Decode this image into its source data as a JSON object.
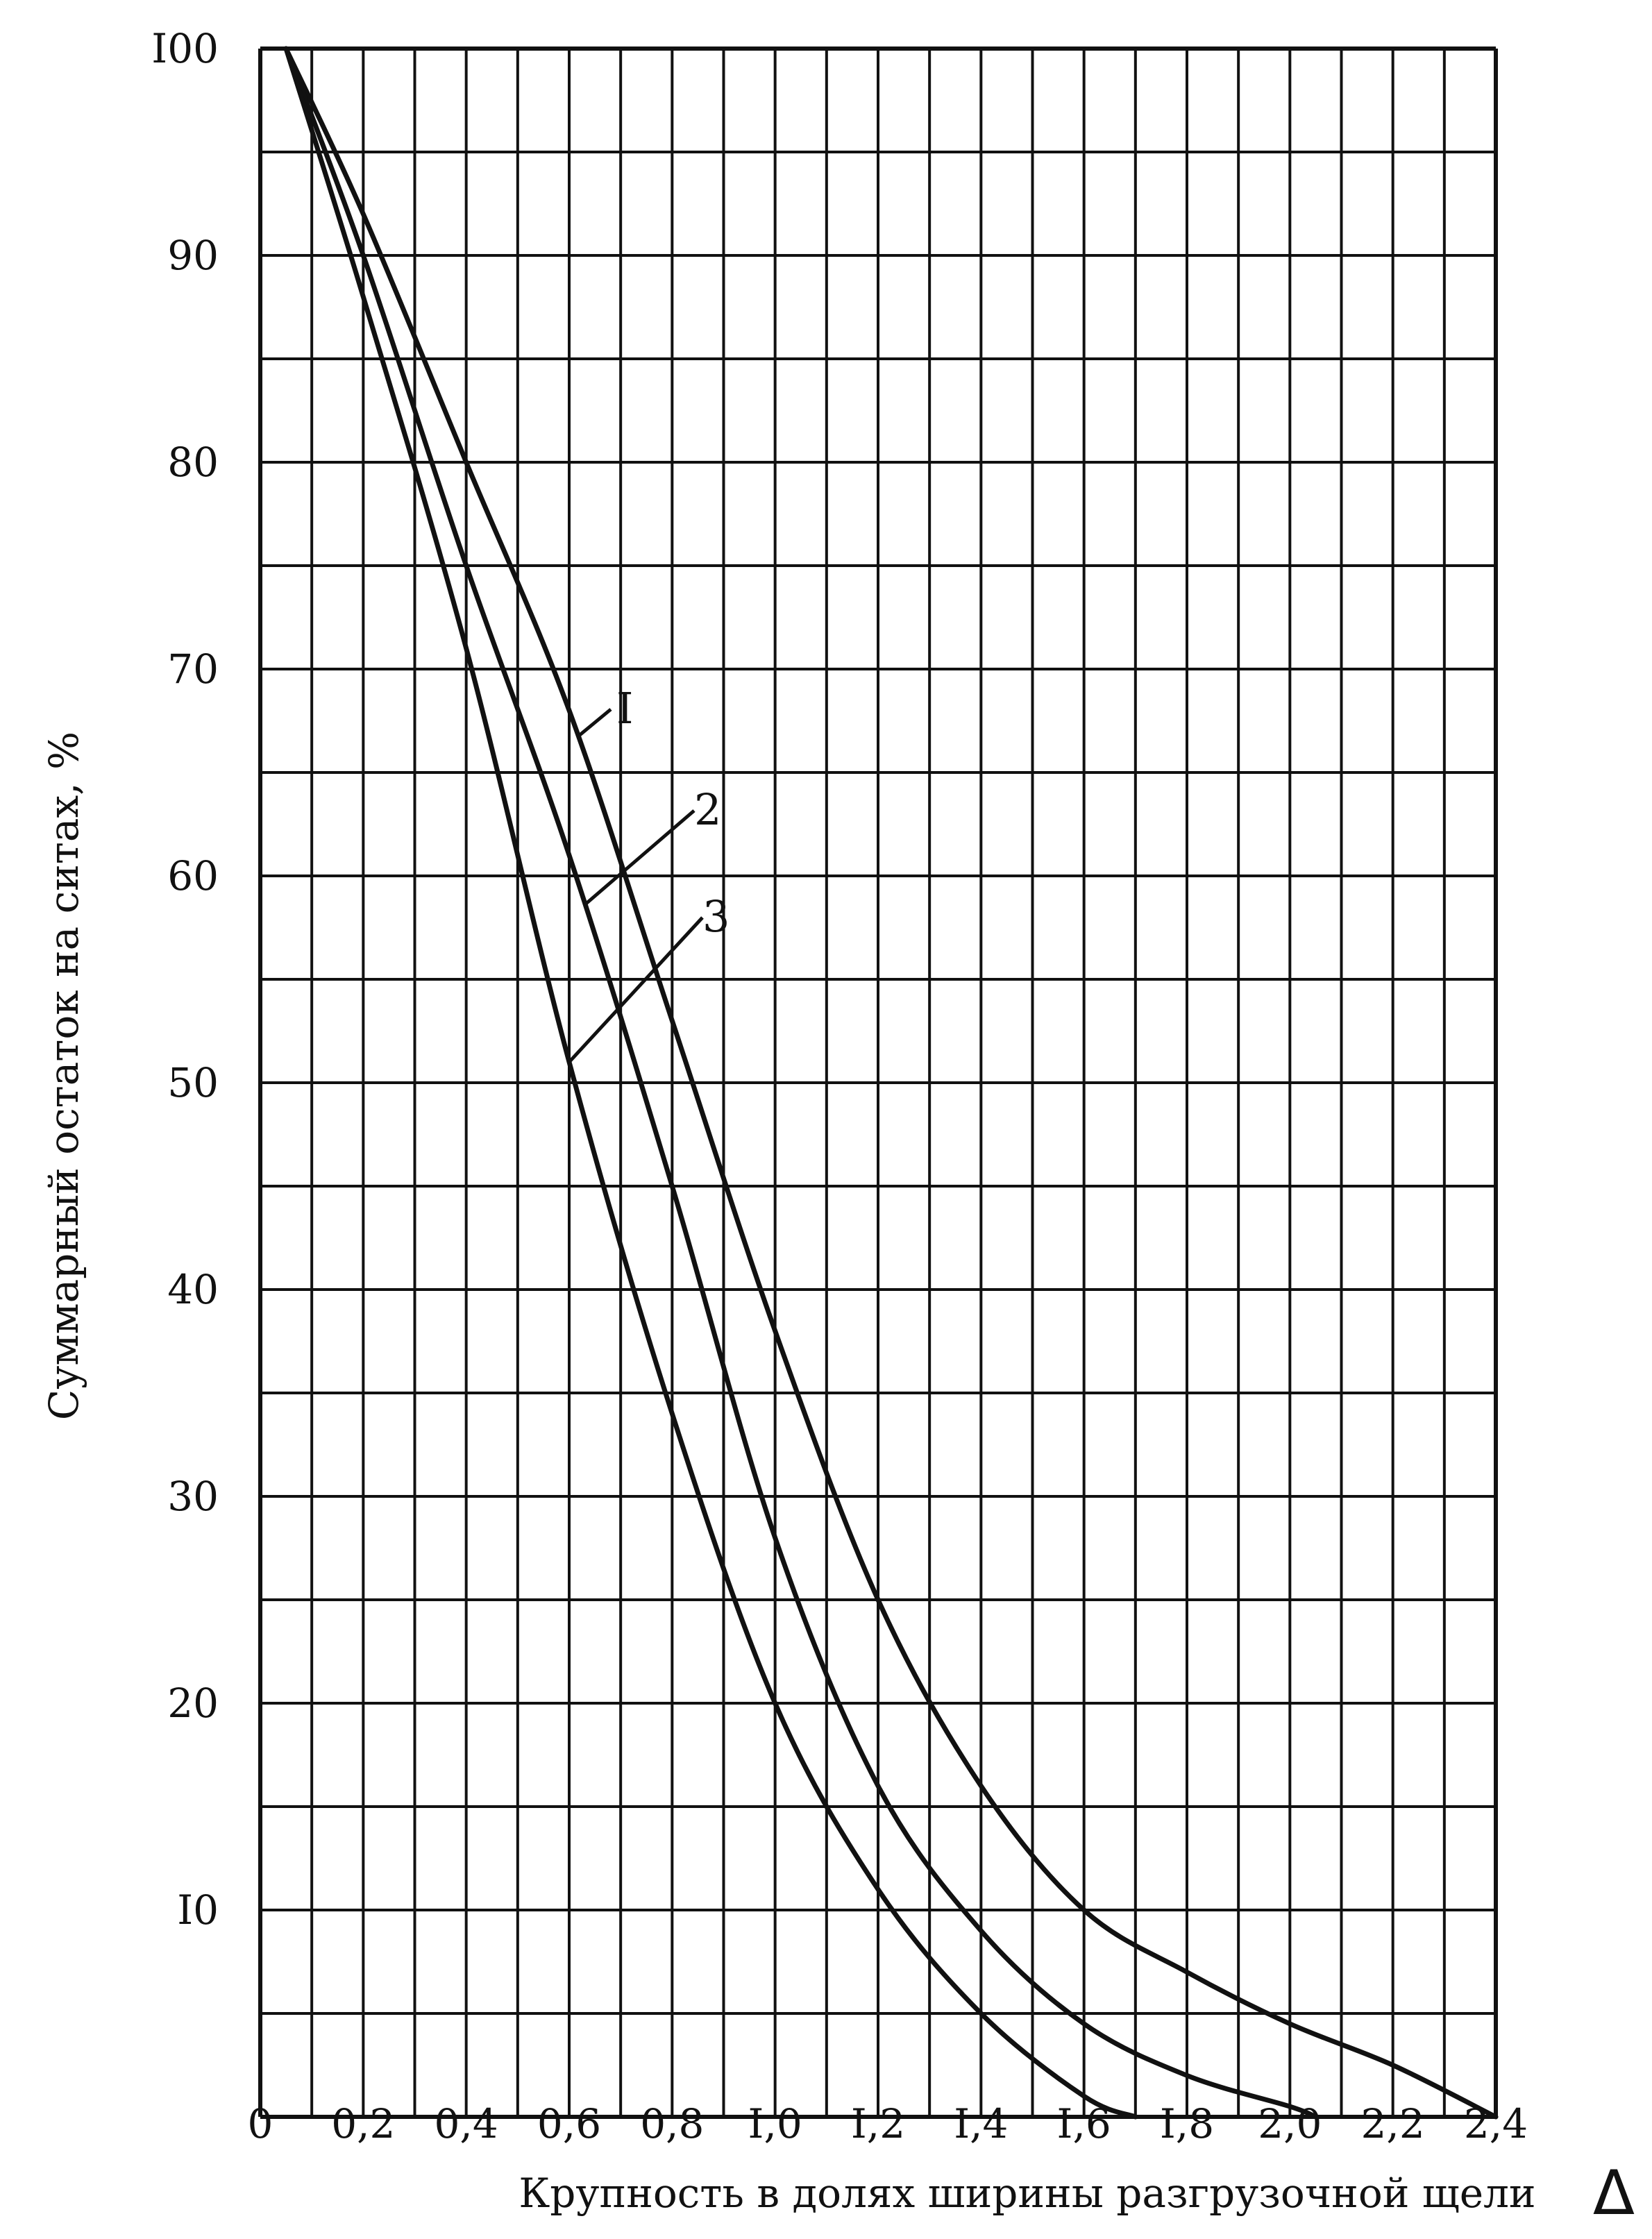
{
  "chart_data": {
    "type": "line",
    "title": "",
    "xlabel": "Крупность в долях ширины разгрузочной щели",
    "xlabel_symbol": "Δ",
    "ylabel": "Суммарный остаток на ситах, %",
    "xlim": [
      0,
      2.4
    ],
    "ylim": [
      0,
      100
    ],
    "grid": true,
    "x_ticks": [
      "0",
      "0,2",
      "0,4",
      "0,6",
      "0,8",
      "I,0",
      "I,2",
      "I,4",
      "I,6",
      "I,8",
      "2,0",
      "2,2",
      "2,4"
    ],
    "y_ticks": [
      "I00",
      "90",
      "80",
      "70",
      "60",
      "50",
      "40",
      "30",
      "20",
      "I0"
    ],
    "series": [
      {
        "name": "I",
        "x": [
          0.05,
          0.2,
          0.4,
          0.6,
          0.8,
          1.0,
          1.2,
          1.4,
          1.6,
          1.8,
          2.0,
          2.2,
          2.4
        ],
        "y": [
          100,
          92,
          80,
          68,
          53,
          38,
          25,
          16,
          10,
          7,
          4.5,
          2.5,
          0
        ]
      },
      {
        "name": "2",
        "x": [
          0.05,
          0.2,
          0.4,
          0.6,
          0.8,
          1.0,
          1.2,
          1.4,
          1.6,
          1.8,
          2.0,
          2.05
        ],
        "y": [
          100,
          90,
          75,
          61,
          45,
          28,
          16,
          9,
          4.5,
          2,
          0.5,
          0
        ]
      },
      {
        "name": "3",
        "x": [
          0.05,
          0.2,
          0.4,
          0.6,
          0.8,
          1.0,
          1.2,
          1.4,
          1.6,
          1.7
        ],
        "y": [
          100,
          88,
          71,
          51,
          34,
          20,
          11,
          5,
          1,
          0
        ]
      }
    ],
    "series_labels": [
      "I",
      "2",
      "3"
    ]
  }
}
